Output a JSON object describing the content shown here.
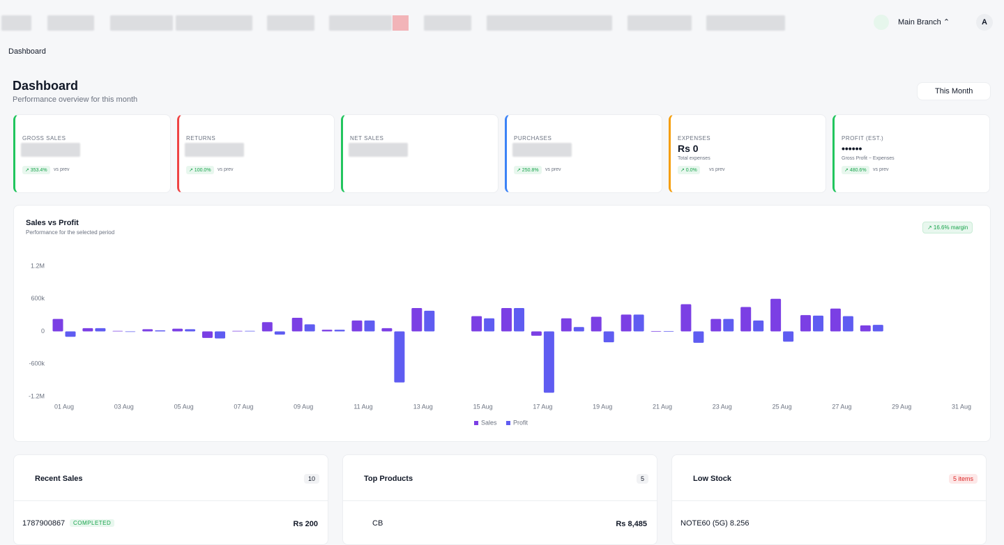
{
  "header": {
    "branch": "Main Branch",
    "avatar": "A"
  },
  "breadcrumb": "Dashboard",
  "page": {
    "title": "Dashboard",
    "subtitle": "Performance overview for this month",
    "period": "This Month"
  },
  "kpis": [
    {
      "label": "GROSS SALES",
      "change": "↗ 353.4%",
      "compare": "vs prev"
    },
    {
      "label": "RETURNS",
      "change": "↗ 100.0%",
      "compare": "vs prev"
    },
    {
      "label": "NET SALES"
    },
    {
      "label": "PURCHASES",
      "change": "↗ 250.8%",
      "compare": "vs prev"
    },
    {
      "label": "EXPENSES",
      "value": "Rs 0",
      "note": "Total expenses",
      "change": "↗ 0.0%",
      "compare": "vs prev"
    },
    {
      "label": "PROFIT (EST.)",
      "value": "••••••",
      "note": "Gross Profit − Expenses",
      "change": "↗ 480.6%",
      "compare": "vs prev"
    }
  ],
  "chart_data": {
    "type": "bar",
    "title": "Sales vs Profit",
    "subtitle": "Performance for the selected period",
    "badge": "↗ 16.6% margin",
    "categories": [
      "01 Aug",
      null,
      "03 Aug",
      null,
      "05 Aug",
      null,
      "07 Aug",
      null,
      "09 Aug",
      null,
      "11 Aug",
      null,
      "13 Aug",
      null,
      "15 Aug",
      null,
      "17 Aug",
      null,
      "19 Aug",
      null,
      "21 Aug",
      null,
      "23 Aug",
      null,
      "25 Aug",
      null,
      "27 Aug",
      null,
      "29 Aug",
      null,
      "31 Aug"
    ],
    "series": [
      {
        "name": "Sales",
        "color": "#7b3fe4",
        "values": [
          230000,
          60000,
          10000,
          40000,
          50000,
          -120000,
          10000,
          170000,
          250000,
          30000,
          200000,
          60000,
          430000,
          null,
          280000,
          430000,
          -80000,
          240000,
          270000,
          310000,
          5000,
          500000,
          230000,
          450000,
          600000,
          300000,
          420000,
          110000,
          null,
          null,
          null
        ]
      },
      {
        "name": "Profit",
        "color": "#5f5cf1",
        "values": [
          -100000,
          60000,
          -10000,
          20000,
          40000,
          -130000,
          10000,
          -60000,
          130000,
          30000,
          200000,
          -940000,
          380000,
          null,
          240000,
          430000,
          -1130000,
          80000,
          -200000,
          310000,
          5000,
          -210000,
          230000,
          200000,
          -190000,
          290000,
          280000,
          120000,
          null,
          null,
          null
        ]
      }
    ],
    "ylim": [
      -1200000,
      1200000
    ],
    "yticks": [
      {
        "value": -1200000,
        "label": "-1.2M"
      },
      {
        "value": -600000,
        "label": "-600k"
      },
      0,
      {
        "value": 600000,
        "label": "600k"
      },
      {
        "value": 1200000,
        "label": "1.2M"
      }
    ],
    "grid": false,
    "legend": "bottom"
  },
  "panels": [
    {
      "title": "Recent Sales",
      "badge": "10",
      "row": {
        "name": "1787900867",
        "status": "COMPLETED",
        "amount": "Rs 200"
      }
    },
    {
      "title": "Top Products",
      "badge": "5",
      "row": {
        "name": "CB",
        "amount": "Rs 8,485"
      }
    },
    {
      "title": "Low Stock",
      "badge": "5 items",
      "row": {
        "name": "NOTE60 (5G) 8.256"
      }
    }
  ]
}
